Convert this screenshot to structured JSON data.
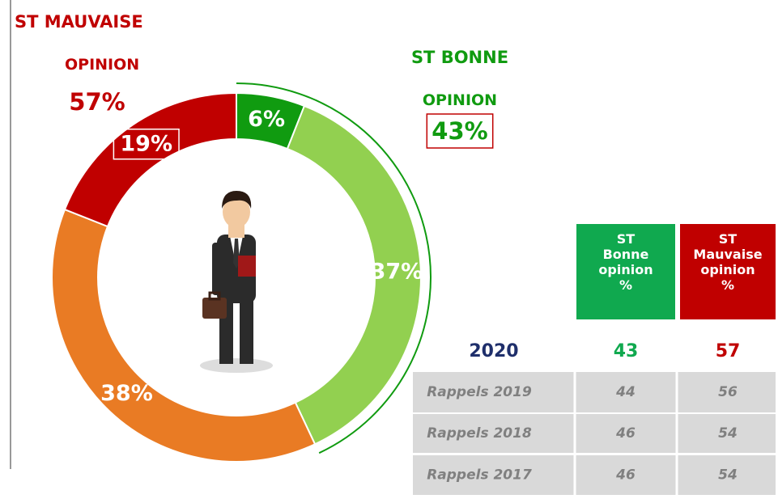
{
  "chart_data": {
    "type": "pie",
    "donut": true,
    "values": [
      6,
      37,
      38,
      19
    ],
    "value_labels": [
      "6%",
      "37%",
      "38%",
      "19%"
    ],
    "colors": [
      "#109b10",
      "#92d050",
      "#e97b24",
      "#c00000"
    ],
    "annotations": [
      {
        "text": "ST MAUVAISE OPINION",
        "value": 57,
        "label": "57%",
        "color": "#c00000"
      },
      {
        "text": "ST BONNE OPINION",
        "value": 43,
        "label": "43%",
        "color": "#109b10"
      }
    ]
  },
  "table": {
    "headers": [
      "ST Bonne opinion %",
      "ST Mauvaise opinion %"
    ],
    "header_colors": [
      "#10a94f",
      "#c00000"
    ],
    "rows": [
      [
        "2020",
        43,
        57
      ],
      [
        "Rappels 2019",
        44,
        56
      ],
      [
        "Rappels 2018",
        46,
        54
      ],
      [
        "Rappels 2017",
        46,
        54
      ]
    ]
  }
}
